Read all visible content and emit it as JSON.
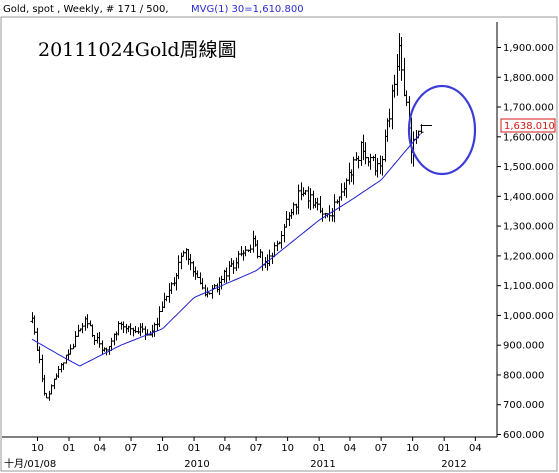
{
  "header": {
    "symbol_text": "Gold, spot , Weekly, # 171 / 500,",
    "mvg_text": "MVG(1) 30=1,610.800"
  },
  "annotation": {
    "text": "20111024Gold周線圖"
  },
  "last_price_label": "1,638.010",
  "colors": {
    "price_bars": "#000000",
    "moving_average": "#1f1fcf",
    "highlight_circle": "#3c3cd8",
    "last_price": "#d01818",
    "axis": "#000000",
    "background": "#ffffff"
  },
  "chart_data": {
    "type": "ohlc_bar",
    "frequency": "weekly",
    "y_scale": "linear",
    "ylim": [
      600,
      1950
    ],
    "grid": false,
    "y_ticks": [
      600,
      700,
      800,
      900,
      1000,
      1100,
      1200,
      1300,
      1400,
      1500,
      1600,
      1700,
      1800,
      1900
    ],
    "y_tick_labels": [
      "600.000",
      "700.000",
      "800.000",
      "900.000",
      "1,000.000",
      "1,100.000",
      "1,200.000",
      "1,300.000",
      "1,400.000",
      "1,500.000",
      "1,600.000",
      "1,700.000",
      "1,800.000",
      "1,900.000"
    ],
    "x_ticks": [
      "10",
      "01",
      "04",
      "07",
      "10",
      "01",
      "04",
      "07",
      "10",
      "01",
      "04",
      "07",
      "10",
      "01",
      "04"
    ],
    "x_year_labels": [
      "十月/01/08",
      "2010",
      "2011",
      "2012"
    ],
    "series": [
      {
        "name": "price",
        "anchors": [
          {
            "t": "2008-09-15",
            "v": 980
          },
          {
            "t": "2008-10-24",
            "v": 720
          },
          {
            "t": "2008-12-15",
            "v": 850
          },
          {
            "t": "2009-02-20",
            "v": 985
          },
          {
            "t": "2009-04-10",
            "v": 870
          },
          {
            "t": "2009-06-01",
            "v": 975
          },
          {
            "t": "2009-09-01",
            "v": 940
          },
          {
            "t": "2009-12-02",
            "v": 1215
          },
          {
            "t": "2010-02-05",
            "v": 1060
          },
          {
            "t": "2010-06-21",
            "v": 1250
          },
          {
            "t": "2010-07-28",
            "v": 1160
          },
          {
            "t": "2010-11-09",
            "v": 1420
          },
          {
            "t": "2011-01-28",
            "v": 1320
          },
          {
            "t": "2011-05-02",
            "v": 1560
          },
          {
            "t": "2011-06-28",
            "v": 1480
          },
          {
            "t": "2011-08-22",
            "v": 1895
          },
          {
            "t": "2011-09-26",
            "v": 1570
          },
          {
            "t": "2011-10-24",
            "v": 1638
          }
        ]
      },
      {
        "name": "MVG(1) 30",
        "anchors": [
          {
            "t": "2008-09-15",
            "v": 920
          },
          {
            "t": "2008-12-15",
            "v": 860
          },
          {
            "t": "2009-02-01",
            "v": 830
          },
          {
            "t": "2009-06-01",
            "v": 900
          },
          {
            "t": "2009-10-01",
            "v": 955
          },
          {
            "t": "2010-01-01",
            "v": 1060
          },
          {
            "t": "2010-07-01",
            "v": 1150
          },
          {
            "t": "2011-01-01",
            "v": 1320
          },
          {
            "t": "2011-04-01",
            "v": 1385
          },
          {
            "t": "2011-07-01",
            "v": 1455
          },
          {
            "t": "2011-09-01",
            "v": 1540
          },
          {
            "t": "2011-10-24",
            "v": 1610.8
          }
        ]
      }
    ]
  }
}
